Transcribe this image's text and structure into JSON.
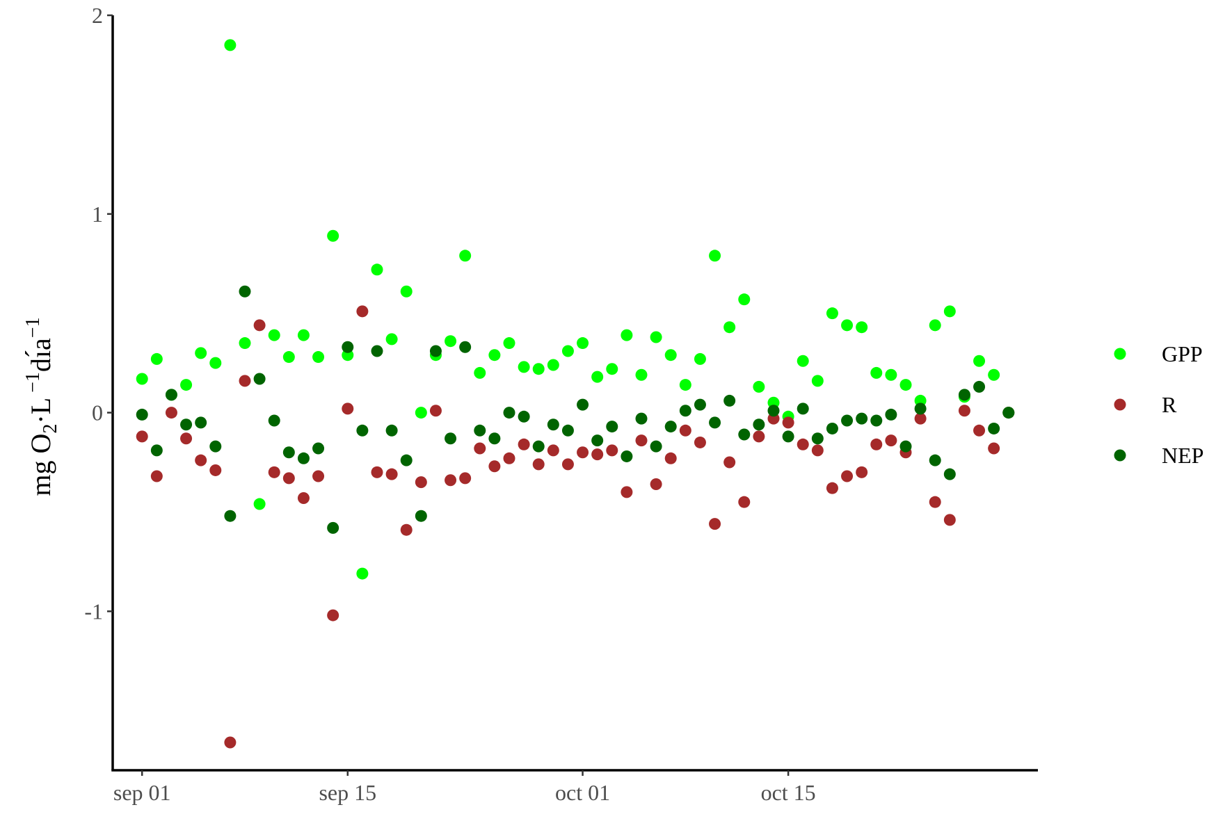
{
  "chart_data": {
    "type": "scatter",
    "title": "",
    "xlabel": "",
    "ylabel": {
      "base": "mg O",
      "sub": "2",
      "mid": "·L",
      "sup1": " −1",
      "end": "dı́a",
      "sup2": "−1"
    },
    "x_axis": {
      "type": "date",
      "range": [
        "2023-08-30",
        "2023-11-01"
      ],
      "ticks": [
        {
          "date": "2023-09-01",
          "label": "sep 01"
        },
        {
          "date": "2023-09-15",
          "label": "sep 15"
        },
        {
          "date": "2023-10-01",
          "label": "oct 01"
        },
        {
          "date": "2023-10-15",
          "label": "oct 15"
        }
      ]
    },
    "y_axis": {
      "range": [
        -1.8,
        2.0
      ],
      "ticks": [
        {
          "value": -1,
          "label": "-1"
        },
        {
          "value": 0,
          "label": "0"
        },
        {
          "value": 1,
          "label": "1"
        },
        {
          "value": 2,
          "label": "2"
        }
      ]
    },
    "grid": false,
    "legend": {
      "position": "right"
    },
    "x": [
      "2023-09-01",
      "2023-09-02",
      "2023-09-03",
      "2023-09-04",
      "2023-09-05",
      "2023-09-06",
      "2023-09-07",
      "2023-09-08",
      "2023-09-09",
      "2023-09-10",
      "2023-09-11",
      "2023-09-12",
      "2023-09-13",
      "2023-09-14",
      "2023-09-15",
      "2023-09-16",
      "2023-09-17",
      "2023-09-18",
      "2023-09-19",
      "2023-09-20",
      "2023-09-21",
      "2023-09-22",
      "2023-09-23",
      "2023-09-24",
      "2023-09-25",
      "2023-09-26",
      "2023-09-27",
      "2023-09-28",
      "2023-09-29",
      "2023-09-30",
      "2023-10-01",
      "2023-10-02",
      "2023-10-03",
      "2023-10-04",
      "2023-10-05",
      "2023-10-06",
      "2023-10-07",
      "2023-10-08",
      "2023-10-09",
      "2023-10-10",
      "2023-10-11",
      "2023-10-12",
      "2023-10-13",
      "2023-10-14",
      "2023-10-15",
      "2023-10-16",
      "2023-10-17",
      "2023-10-18",
      "2023-10-19",
      "2023-10-20",
      "2023-10-21",
      "2023-10-22",
      "2023-10-23",
      "2023-10-24",
      "2023-10-25",
      "2023-10-26",
      "2023-10-27",
      "2023-10-28",
      "2023-10-29",
      "2023-10-30"
    ],
    "series": [
      {
        "name": "GPP",
        "color": "#00ff00",
        "values": [
          0.17,
          0.27,
          0.09,
          0.14,
          0.3,
          0.25,
          1.85,
          0.35,
          -0.46,
          0.39,
          0.28,
          0.39,
          0.28,
          0.89,
          0.29,
          -0.81,
          0.72,
          0.37,
          0.61,
          0.0,
          0.29,
          0.36,
          0.79,
          0.2,
          0.29,
          0.35,
          0.23,
          0.22,
          0.24,
          0.31,
          0.35,
          0.18,
          0.22,
          0.39,
          0.19,
          0.38,
          0.29,
          0.14,
          0.27,
          0.79,
          0.43,
          0.57,
          0.13,
          0.05,
          -0.02,
          0.26,
          0.16,
          0.5,
          0.44,
          0.43,
          0.2,
          0.19,
          0.14,
          0.06,
          0.44,
          0.51,
          0.08,
          0.26,
          0.19,
          0.0
        ]
      },
      {
        "name": "R",
        "color": "#a52a2a",
        "values": [
          -0.12,
          -0.32,
          0.0,
          -0.13,
          -0.24,
          -0.29,
          -1.66,
          0.16,
          0.44,
          -0.3,
          -0.33,
          -0.43,
          -0.32,
          -1.02,
          0.02,
          0.51,
          -0.3,
          -0.31,
          -0.59,
          -0.35,
          0.01,
          -0.34,
          -0.33,
          -0.18,
          -0.27,
          -0.23,
          -0.16,
          -0.26,
          -0.19,
          -0.26,
          -0.2,
          -0.21,
          -0.19,
          -0.4,
          -0.14,
          -0.36,
          -0.23,
          -0.09,
          -0.15,
          -0.56,
          -0.25,
          -0.45,
          -0.12,
          -0.03,
          -0.05,
          -0.16,
          -0.19,
          -0.38,
          -0.32,
          -0.3,
          -0.16,
          -0.14,
          -0.2,
          -0.03,
          -0.45,
          -0.54,
          0.01,
          -0.09,
          -0.18,
          0.0
        ]
      },
      {
        "name": "NEP",
        "color": "#006400",
        "values": [
          -0.01,
          -0.19,
          0.09,
          -0.06,
          -0.05,
          -0.17,
          -0.52,
          0.61,
          0.17,
          -0.04,
          -0.2,
          -0.23,
          -0.18,
          -0.58,
          0.33,
          -0.09,
          0.31,
          -0.09,
          -0.24,
          -0.52,
          0.31,
          -0.13,
          0.33,
          -0.09,
          -0.13,
          0.0,
          -0.02,
          -0.17,
          -0.06,
          -0.09,
          0.04,
          -0.14,
          -0.07,
          -0.22,
          -0.03,
          -0.17,
          -0.07,
          0.01,
          0.04,
          -0.05,
          0.06,
          -0.11,
          -0.06,
          0.01,
          -0.12,
          0.02,
          -0.13,
          -0.08,
          -0.04,
          -0.03,
          -0.04,
          -0.01,
          -0.17,
          0.02,
          -0.24,
          -0.31,
          0.09,
          0.13,
          -0.08,
          0.0
        ]
      }
    ]
  }
}
